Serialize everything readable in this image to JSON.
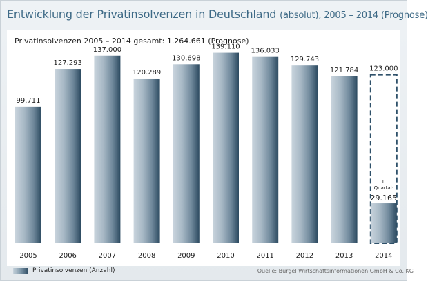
{
  "title": {
    "main": "Entwicklung der Privatinsolvenzen in Deutschland",
    "suffix": "(absolut), 2005 – 2014 (Prognose)"
  },
  "subtitle": "Privatinsolvenzen 2005 – 2014 gesamt: 1.264.661 (Prognose)",
  "legend": {
    "label": "Privatinsolvenzen (Anzahl)"
  },
  "source": "Quelle: Bürgel Wirtschaftsinformationen GmbH & Co. KG",
  "colors": {
    "title": "#3e6a86",
    "bar_light": "#c9d4dd",
    "bar_mid": "#8aa0b1",
    "bar_dark": "#2c4a60",
    "forecast_border": "#2f516a"
  },
  "chart_data": {
    "type": "bar",
    "categories": [
      "2005",
      "2006",
      "2007",
      "2008",
      "2009",
      "2010",
      "2011",
      "2012",
      "2013",
      "2014"
    ],
    "series": [
      {
        "name": "Privatinsolvenzen (Anzahl)",
        "values": [
          99711,
          127293,
          137000,
          120289,
          130698,
          139110,
          136033,
          129743,
          121784,
          123000
        ],
        "labels": [
          "99.711",
          "127.293",
          "137.000",
          "120.289",
          "130.698",
          "139.110",
          "136.033",
          "129.743",
          "121.784",
          "123.000"
        ]
      }
    ],
    "forecast": {
      "category": "2014",
      "value": 123000,
      "style": "dashed outline"
    },
    "annotation": {
      "category": "2014",
      "lines": [
        "1.",
        "Quartal:"
      ],
      "value_label": "29.165",
      "value": 29165
    },
    "ylim": [
      0,
      155000
    ],
    "grid": false,
    "legend_position": "bottom-left"
  }
}
